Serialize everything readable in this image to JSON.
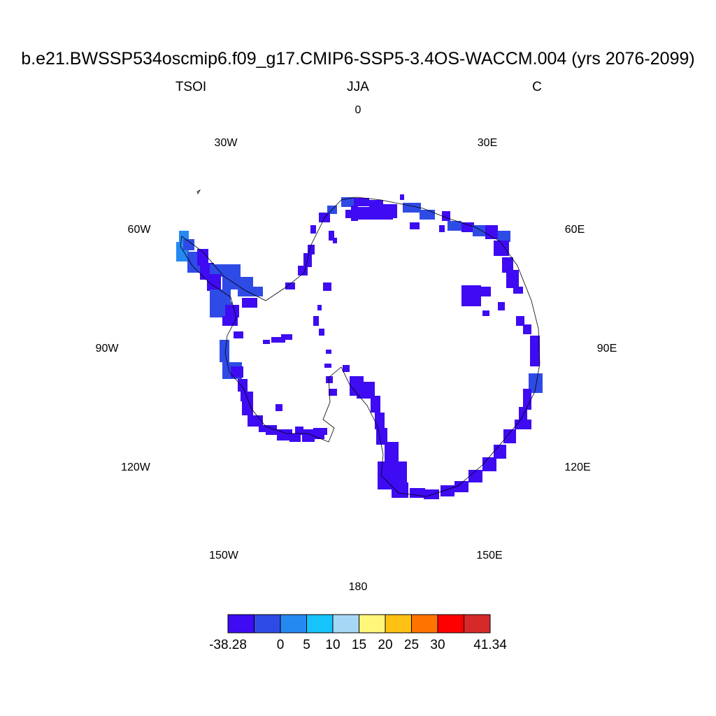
{
  "header": {
    "title": "b.e21.BWSSP534oscmip6.f09_g17.CMIP6-SSP5-3.4OS-WACCM.004 (yrs 2076-2099)",
    "left": "TSOI",
    "center": "JJA",
    "right": "C"
  },
  "longitude_labels": [
    "0",
    "30E",
    "60E",
    "90E",
    "120E",
    "150E",
    "180",
    "150W",
    "120W",
    "90W",
    "60W",
    "30W"
  ],
  "colorbar": {
    "colors": [
      "#3e0bf2",
      "#2f4be6",
      "#2689f2",
      "#16c3fa",
      "#a6d8f5",
      "#fff67a",
      "#ffc114",
      "#ff7400",
      "#ff0000",
      "#d62a2a"
    ],
    "labels": [
      "-38.28",
      "0",
      "5",
      "10",
      "15",
      "20",
      "25",
      "30",
      "41.34"
    ]
  },
  "map_colors": {
    "coast": "#000000",
    "dominant": "#3e0bf2",
    "secondary": "#2f4be6",
    "light": "#2689f2"
  }
}
